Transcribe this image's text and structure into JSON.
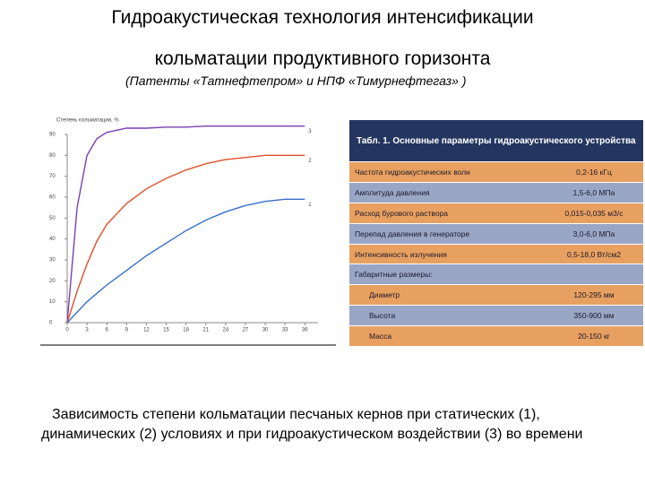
{
  "header": {
    "title_lines": [
      "Гидроакустическая   технология интенсификации",
      "кольматации продуктивного горизонта"
    ],
    "subtitle": "(Патенты  «Татнефтепром» и НПФ «Тимурнефтегаз» )"
  },
  "chart_data": {
    "type": "line",
    "y_label": "Степень кольматации, %",
    "x": [
      0,
      1.5,
      3,
      4.5,
      6,
      9,
      12,
      15,
      18,
      21,
      24,
      27,
      30,
      33,
      36
    ],
    "series": [
      {
        "name": "3",
        "color": "#7a3fb0",
        "values": [
          0,
          55,
          80,
          88,
          91,
          93,
          93,
          93.5,
          93.5,
          94,
          94,
          94,
          94,
          94,
          94
        ]
      },
      {
        "name": "2",
        "color": "#e0502a",
        "values": [
          0,
          15,
          28,
          39,
          47,
          57,
          64,
          69,
          73,
          76,
          78,
          79,
          80,
          80,
          80
        ]
      },
      {
        "name": "1",
        "color": "#3a6fc8",
        "values": [
          0,
          5,
          10,
          14,
          18,
          25,
          32,
          38,
          44,
          49,
          53,
          56,
          58,
          59,
          59
        ]
      }
    ],
    "xlim": [
      0,
      38
    ],
    "xticks": [
      0,
      3,
      6,
      9,
      12,
      15,
      18,
      21,
      24,
      27,
      30,
      33,
      36
    ],
    "ylim": [
      0,
      90
    ],
    "yticks": [
      0,
      10,
      20,
      30,
      40,
      50,
      60,
      70,
      80,
      90
    ],
    "grid": false
  },
  "table": {
    "title": "Табл. 1. Основные параметры гидроакустического устройства",
    "rows": [
      [
        "Частота гидроакустических волн",
        "0,2-16 кГц"
      ],
      [
        "Амплитуда давления",
        "1,5-6,0 МПа"
      ],
      [
        "Расход бурового раствора",
        "0,015-0,035 м3/с"
      ],
      [
        "Перепад давления в генераторе",
        "3,0-6,0 МПа"
      ],
      [
        "Интенсивность излучения",
        "0,5-18,0 Вт/см2"
      ],
      [
        "Габаритные размеры:"
      ],
      [
        "Диаметр",
        "120-295 мм"
      ],
      [
        "Высота",
        "350-900 мм"
      ],
      [
        "Масса",
        "20-150 кг"
      ]
    ]
  },
  "caption": "Зависимость степени кольматации песчаных кернов при статических (1), динамических (2) условиях и при гидроакустическом воздействии (3) во времени"
}
